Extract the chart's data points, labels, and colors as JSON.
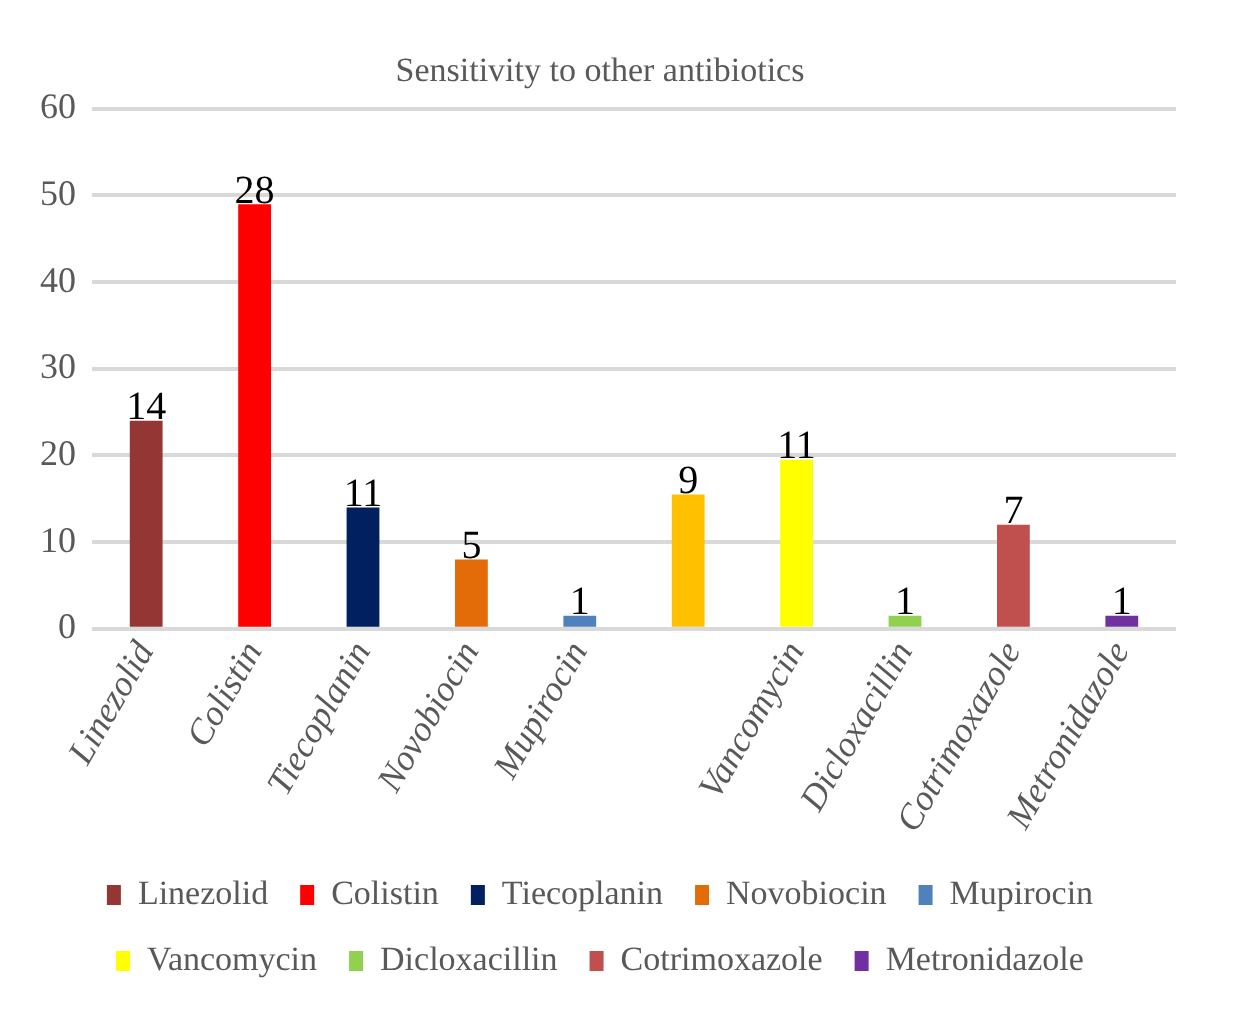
{
  "chart_data": {
    "type": "bar",
    "title": "Sensitivity to other antibiotics",
    "categories": [
      "Linezolid",
      "Colistin",
      "Tiecoplanin",
      "Novobiocin",
      "Mupirocin",
      null,
      "Vancomycin",
      "Dicloxacillin",
      "Cotrimoxazole",
      "Metronidazole"
    ],
    "series": [
      {
        "name": "Linezolid",
        "color": "#943634",
        "values": [
          24,
          null,
          null,
          null,
          null,
          null,
          null,
          null,
          null,
          null
        ]
      },
      {
        "name": "Colistin",
        "color": "#ff0000",
        "values": [
          null,
          49,
          null,
          null,
          null,
          null,
          null,
          null,
          null,
          null
        ]
      },
      {
        "name": "Tiecoplanin",
        "color": "#002060",
        "values": [
          null,
          null,
          14,
          null,
          null,
          null,
          null,
          null,
          null,
          null
        ]
      },
      {
        "name": "Novobiocin",
        "color": "#e36c09",
        "values": [
          null,
          null,
          null,
          8,
          null,
          null,
          null,
          null,
          null,
          null
        ]
      },
      {
        "name": "Mupirocin",
        "color": "#4f81bd",
        "values": [
          null,
          null,
          null,
          null,
          1.5,
          null,
          null,
          null,
          null,
          null
        ]
      },
      {
        "color": "#ffc000",
        "values": [
          null,
          null,
          null,
          null,
          null,
          15.5,
          null,
          null,
          null,
          null
        ]
      },
      {
        "name": "Vancomycin",
        "color": "#ffff00",
        "values": [
          null,
          null,
          null,
          null,
          null,
          null,
          19.5,
          null,
          null,
          null
        ]
      },
      {
        "name": "Dicloxacillin",
        "color": "#92d050",
        "values": [
          null,
          null,
          null,
          null,
          null,
          null,
          null,
          1.5,
          null,
          null
        ]
      },
      {
        "name": "Cotrimoxazole",
        "color": "#c0504d",
        "values": [
          null,
          null,
          null,
          null,
          null,
          null,
          null,
          null,
          12,
          null
        ]
      },
      {
        "name": "Metronidazole",
        "color": "#7030a0",
        "values": [
          null,
          null,
          null,
          null,
          null,
          null,
          null,
          null,
          null,
          1.5
        ]
      }
    ],
    "annotations": [
      {
        "text": "14",
        "x": "Linezolid",
        "y": 24
      },
      {
        "text": "28",
        "x": "Colistin",
        "y": 49
      },
      {
        "text": "11",
        "x": "Tiecoplanin",
        "y": 14
      },
      {
        "text": "5",
        "x": "Novobiocin",
        "y": 8
      },
      {
        "text": "1",
        "x": "Mupirocin",
        "y": 1.5
      },
      {
        "text": "9",
        "y": 15.5
      },
      {
        "text": "11",
        "x": "Vancomycin",
        "y": 19.5
      },
      {
        "text": "1",
        "x": "Dicloxacillin",
        "y": 1.5
      },
      {
        "text": "7",
        "x": "Cotrimoxazole",
        "y": 12
      },
      {
        "text": "1",
        "x": "Metronidazole",
        "y": 1.5
      }
    ],
    "ylim": [
      0,
      60
    ],
    "yticks": [
      0,
      10,
      20,
      30,
      40,
      50,
      60
    ],
    "grid": "y",
    "legend": "bottom"
  }
}
